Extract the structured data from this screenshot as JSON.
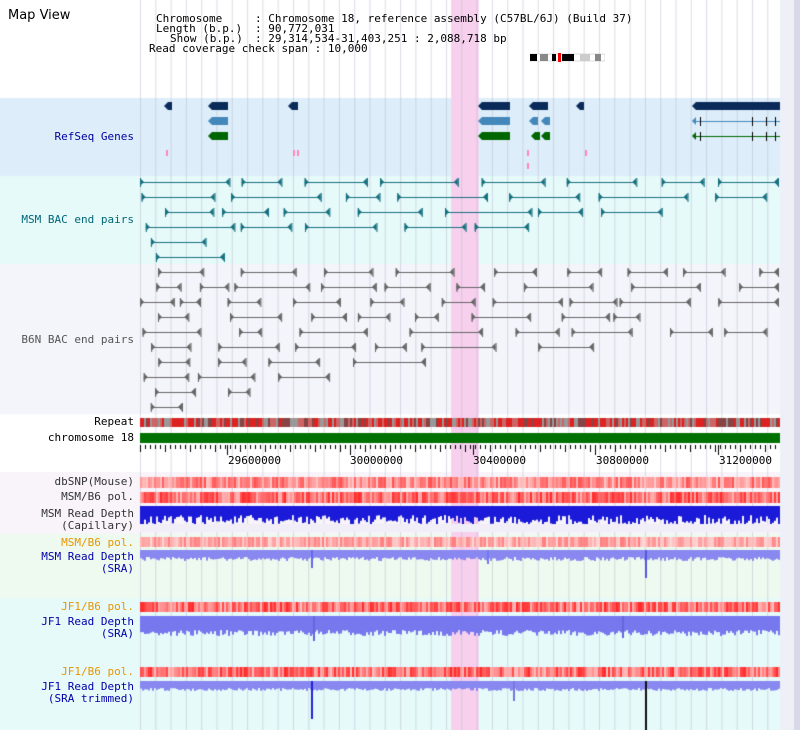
{
  "title": "Map View",
  "info": {
    "lines": [
      {
        "key": "Chromosome",
        "value": "Chromosome 18, reference assembly (C57BL/6J) (Build 37)"
      },
      {
        "key": "Length (b.p.)",
        "value": "90,772,031"
      },
      {
        "key": "Show (b.p.)",
        "value": "29,314,534-31,403,251 : 2,088,718 bp"
      },
      {
        "key": "Read coverage check span",
        "value": "10,000"
      }
    ]
  },
  "tracks": {
    "refseq": {
      "label": "RefSeq Genes",
      "color": "#000099"
    },
    "msm_bac": {
      "label": "MSM BAC end pairs",
      "color": "#006677"
    },
    "b6n_bac": {
      "label": "B6N BAC end pairs",
      "color": "#555555"
    },
    "repeat": {
      "label": "Repeat"
    },
    "chromosome": {
      "label": "chromosome 18"
    },
    "dbsnp": {
      "label": "dbSNP(Mouse)"
    },
    "msm_b6_pol": {
      "label": "MSM/B6 pol."
    },
    "msm_depth_cap": {
      "label": "MSM Read Depth",
      "sub": "(Capillary)"
    },
    "msm_b6_pol2": {
      "label": "MSM/B6 pol.",
      "color": "#e69500"
    },
    "msm_depth_sra": {
      "label": "MSM Read Depth",
      "sub": "(SRA)",
      "color": "#0000aa"
    },
    "jf1_b6_pol": {
      "label": "JF1/B6 pol.",
      "color": "#e69500"
    },
    "jf1_depth_sra": {
      "label": "JF1 Read Depth",
      "sub": "(SRA)",
      "color": "#0000aa"
    },
    "jf1_b6_pol2": {
      "label": "JF1/B6 pol.",
      "color": "#e69500"
    },
    "jf1_depth_trim": {
      "label": "JF1 Read Depth",
      "sub": "(SRA trimmed)",
      "color": "#0000aa"
    }
  },
  "axis": {
    "ticks": [
      "29600000",
      "30000000",
      "30400000",
      "30800000",
      "31200000"
    ],
    "tick_values": [
      29600000,
      30000000,
      30400000,
      30800000,
      31200000
    ],
    "start": 29314534,
    "end": 31403251
  },
  "highlight": {
    "start": 30330000,
    "end": 30420000,
    "color": "#f7d0ee"
  }
}
